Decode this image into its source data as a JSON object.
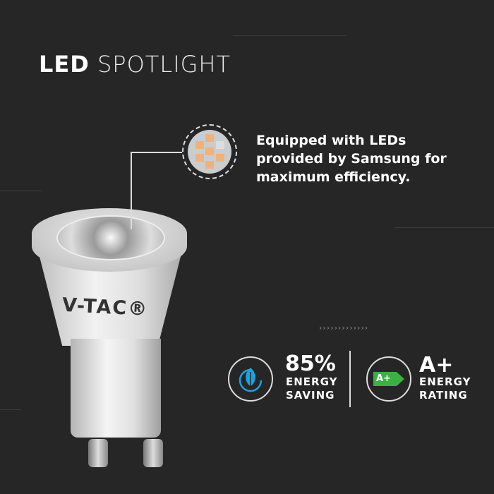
{
  "title": {
    "bold": "LED",
    "light": "SPOTLIGHT"
  },
  "feature": {
    "text": "Equipped with LEDs provided by Samsung for maximum efficiency.",
    "icon": "led-chip-icon"
  },
  "product": {
    "brand_logo": "V-TAC®"
  },
  "decor": {
    "arrows": "›››››››››››››"
  },
  "stats": [
    {
      "value": "85%",
      "label1": "ENERGY",
      "label2": "SAVING",
      "icon": "leaf-plug-icon",
      "color": "#1aa3e0"
    },
    {
      "value": "A+",
      "label1": "ENERGY",
      "label2": "RATING",
      "icon": "energy-class-icon",
      "badge": "A+",
      "color": "#3cb043"
    }
  ]
}
